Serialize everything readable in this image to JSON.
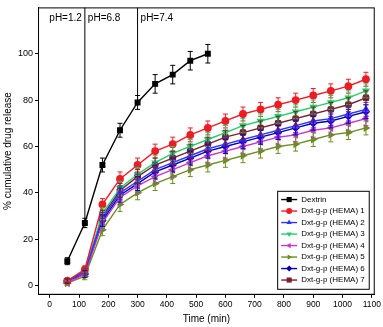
{
  "chart_data": {
    "type": "line",
    "x_label": "Time (min)",
    "y_label": "% cumulative drug release",
    "x": [
      60,
      120,
      180,
      240,
      300,
      360,
      420,
      480,
      540,
      600,
      660,
      720,
      780,
      840,
      900,
      960,
      1020,
      1080
    ],
    "xlim": [
      -40,
      1110
    ],
    "xticks": [
      0,
      100,
      200,
      300,
      400,
      500,
      600,
      700,
      800,
      900,
      1000,
      1100
    ],
    "ylim": [
      -4,
      120
    ],
    "yticks": [
      0,
      20,
      40,
      60,
      80,
      100
    ],
    "grid": false,
    "legend": "lower right",
    "phase_boundaries": [
      120,
      300
    ],
    "annotations": [
      "pH=1.2",
      "pH=6.8",
      "pH=7.4"
    ],
    "series": [
      {
        "name": "Dextrin",
        "color": "#000000",
        "marker": "square",
        "values": [
          10.5,
          27,
          52,
          67,
          79,
          87,
          91,
          97,
          100,
          null,
          null,
          null,
          null,
          null,
          null,
          null,
          null,
          null
        ],
        "errors": [
          1.5,
          2,
          3,
          3,
          3,
          4,
          4,
          4,
          4,
          null,
          null,
          null,
          null,
          null,
          null,
          null,
          null,
          null
        ]
      },
      {
        "name": "Dxt-g-p (HEMA) 1",
        "color": "#ee1c24",
        "marker": "circle",
        "values": [
          2,
          7,
          35,
          46,
          52,
          58,
          61,
          65,
          68,
          71,
          74,
          76,
          78,
          80,
          82,
          84,
          86,
          89
        ],
        "errors": [
          1,
          1.5,
          2.5,
          3,
          3,
          3,
          3,
          3,
          3,
          3,
          3,
          3,
          3,
          3,
          3,
          3,
          3,
          3
        ]
      },
      {
        "name": "Dxt-g-p (HEMA) 2",
        "color": "#3333ff",
        "marker": "triangle-up",
        "values": [
          2,
          6,
          29,
          40,
          45,
          50,
          53,
          56,
          59,
          61,
          63,
          65,
          67,
          69,
          71,
          72,
          74,
          76
        ],
        "errors": [
          1,
          1.5,
          2.5,
          3,
          3,
          3,
          3,
          3,
          3,
          3,
          3,
          3,
          3,
          3,
          3,
          3,
          3,
          3
        ]
      },
      {
        "name": "Dxt-g-p (HEMA) 3",
        "color": "#22cc66",
        "marker": "triangle-down",
        "values": [
          2,
          6,
          31,
          42,
          48,
          53,
          57,
          60,
          63,
          66,
          69,
          71,
          73,
          75,
          77,
          79,
          81,
          84
        ],
        "errors": [
          1,
          1.5,
          2.5,
          3,
          3,
          3,
          3,
          3,
          3,
          3,
          3,
          3,
          3,
          3,
          3,
          3,
          3,
          3
        ]
      },
      {
        "name": "Dxt-g-p (HEMA) 4",
        "color": "#cc33cc",
        "marker": "triangle-left",
        "values": [
          1,
          5,
          27,
          38,
          43,
          47,
          50,
          53,
          56,
          58,
          60,
          62,
          64,
          65,
          67,
          68,
          70,
          72
        ],
        "errors": [
          1,
          1.5,
          2.5,
          3,
          3,
          3,
          3,
          3,
          3,
          3,
          3,
          3,
          3,
          3,
          3,
          3,
          3,
          3
        ]
      },
      {
        "name": "Dxt-g-p (HEMA) 5",
        "color": "#6b8e23",
        "marker": "triangle-right",
        "values": [
          1,
          4,
          24,
          35,
          40,
          44,
          47,
          50,
          52,
          54,
          56,
          58,
          60,
          61,
          63,
          65,
          66,
          68
        ],
        "errors": [
          1,
          1.5,
          2.5,
          3,
          3,
          3,
          3,
          3,
          3,
          3,
          3,
          3,
          3,
          3,
          3,
          3,
          3,
          3
        ]
      },
      {
        "name": "Dxt-g-p (HEMA) 6",
        "color": "#0000bb",
        "marker": "diamond",
        "values": [
          2,
          5,
          28,
          39,
          44,
          49,
          52,
          55,
          58,
          60,
          62,
          64,
          66,
          68,
          70,
          71,
          73,
          75
        ],
        "errors": [
          1,
          1.5,
          2.5,
          3,
          3,
          3,
          3,
          3,
          3,
          3,
          3,
          3,
          3,
          3,
          3,
          3,
          3,
          3
        ]
      },
      {
        "name": "Dxt-g-p (HEMA) 7",
        "color": "#7a1f2b",
        "marker": "hexagon",
        "values": [
          2,
          6,
          30,
          41,
          47,
          52,
          55,
          58,
          61,
          64,
          66,
          68,
          70,
          72,
          74,
          76,
          78,
          81
        ],
        "errors": [
          1,
          1.5,
          2.5,
          3,
          3,
          3,
          3,
          3,
          3,
          3,
          3,
          3,
          3,
          3,
          3,
          3,
          3,
          3
        ]
      }
    ]
  }
}
